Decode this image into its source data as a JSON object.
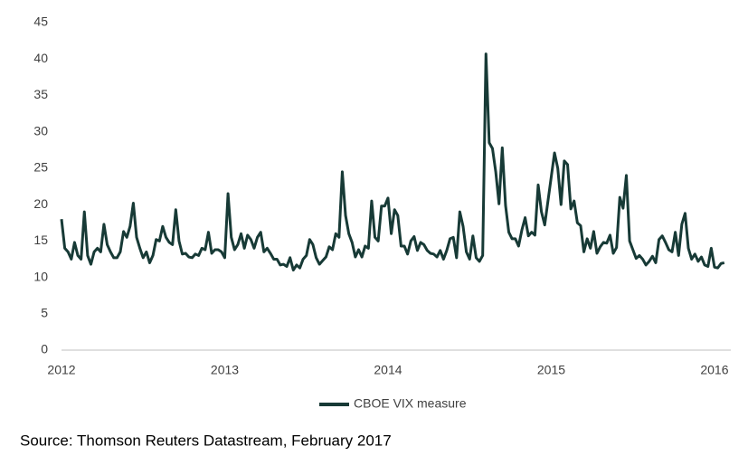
{
  "chart_data": {
    "type": "line",
    "x": [
      2012,
      2012.02,
      2012.04,
      2012.06,
      2012.08,
      2012.1,
      2012.12,
      2012.14,
      2012.16,
      2012.18,
      2012.2,
      2012.22,
      2012.24,
      2012.26,
      2012.28,
      2012.3,
      2012.32,
      2012.34,
      2012.36,
      2012.38,
      2012.4,
      2012.42,
      2012.44,
      2012.46,
      2012.48,
      2012.5,
      2012.52,
      2012.54,
      2012.56,
      2012.58,
      2012.6,
      2012.62,
      2012.64,
      2012.66,
      2012.68,
      2012.7,
      2012.72,
      2012.74,
      2012.76,
      2012.78,
      2012.8,
      2012.82,
      2012.84,
      2012.86,
      2012.88,
      2012.9,
      2012.92,
      2012.94,
      2012.96,
      2012.98,
      2013,
      2013.02,
      2013.04,
      2013.06,
      2013.08,
      2013.1,
      2013.12,
      2013.14,
      2013.16,
      2013.18,
      2013.2,
      2013.22,
      2013.24,
      2013.26,
      2013.28,
      2013.3,
      2013.32,
      2013.34,
      2013.36,
      2013.38,
      2013.4,
      2013.42,
      2013.44,
      2013.46,
      2013.48,
      2013.5,
      2013.52,
      2013.54,
      2013.56,
      2013.58,
      2013.6,
      2013.62,
      2013.64,
      2013.66,
      2013.68,
      2013.7,
      2013.72,
      2013.74,
      2013.76,
      2013.78,
      2013.8,
      2013.82,
      2013.84,
      2013.86,
      2013.88,
      2013.9,
      2013.92,
      2013.94,
      2013.96,
      2013.98,
      2014,
      2014.02,
      2014.04,
      2014.06,
      2014.08,
      2014.1,
      2014.12,
      2014.14,
      2014.16,
      2014.18,
      2014.2,
      2014.22,
      2014.24,
      2014.26,
      2014.28,
      2014.3,
      2014.32,
      2014.34,
      2014.36,
      2014.38,
      2014.4,
      2014.42,
      2014.44,
      2014.46,
      2014.48,
      2014.5,
      2014.52,
      2014.54,
      2014.56,
      2014.58,
      2014.6,
      2014.62,
      2014.64,
      2014.66,
      2014.68,
      2014.7,
      2014.72,
      2014.74,
      2014.76,
      2014.78,
      2014.8,
      2014.82,
      2014.84,
      2014.86,
      2014.88,
      2014.9,
      2014.92,
      2014.94,
      2014.96,
      2014.98,
      2015,
      2015.02,
      2015.04,
      2015.06,
      2015.08,
      2015.1,
      2015.12,
      2015.14,
      2015.16,
      2015.18,
      2015.2,
      2015.22,
      2015.24,
      2015.26,
      2015.28,
      2015.3,
      2015.32,
      2015.34,
      2015.36,
      2015.38,
      2015.4,
      2015.42,
      2015.44,
      2015.46,
      2015.48,
      2015.5,
      2015.52,
      2015.54,
      2015.56,
      2015.58,
      2015.6,
      2015.62,
      2015.64,
      2015.66,
      2015.68,
      2015.7,
      2015.72,
      2015.74,
      2015.76,
      2015.78,
      2015.8,
      2015.82,
      2015.84,
      2015.86,
      2015.88,
      2015.9,
      2015.92,
      2015.94,
      2015.96,
      2015.98,
      2016,
      2016.02,
      2016.04,
      2016.06
    ],
    "series": [
      {
        "name": "CBOE VIX measure",
        "color": "#173a36",
        "values": [
          18,
          14,
          13.5,
          12.5,
          14.8,
          13,
          12.5,
          19,
          13,
          11.8,
          13.5,
          14,
          13.5,
          17.3,
          14.5,
          13.5,
          12.7,
          12.7,
          13.5,
          16.3,
          15.5,
          17,
          20.2,
          15.5,
          14,
          12.7,
          13.5,
          12,
          13,
          15.2,
          15,
          17,
          15.5,
          14.8,
          14.5,
          19.3,
          15,
          13.2,
          13.3,
          12.8,
          12.7,
          13.2,
          13,
          14,
          13.8,
          16.2,
          13.3,
          13.8,
          13.8,
          13.5,
          12.7,
          21.5,
          15.5,
          13.8,
          14.5,
          16,
          14,
          15.8,
          15.2,
          14,
          15.5,
          16.2,
          13.5,
          14,
          13.3,
          12.5,
          12.5,
          11.7,
          11.8,
          11.5,
          12.7,
          11,
          11.7,
          11.3,
          12.5,
          13,
          15.2,
          14.5,
          12.7,
          11.8,
          12.3,
          12.8,
          14.2,
          13.8,
          16,
          15.5,
          24.5,
          18.5,
          16,
          14.8,
          12.8,
          13.8,
          12.8,
          14.3,
          14,
          20.5,
          15.5,
          15,
          19.8,
          19.8,
          20.9,
          16,
          19.3,
          18.5,
          14.3,
          14.3,
          13.2,
          15,
          15.6,
          13.7,
          14.8,
          14.5,
          13.7,
          13.3,
          13.2,
          12.8,
          13.7,
          12.5,
          13.7,
          15.3,
          15.5,
          12.7,
          19,
          17,
          13.5,
          12.5,
          15.7,
          12.7,
          12.2,
          13,
          40.7,
          28.5,
          27.7,
          24.5,
          20.1,
          27.8,
          19.9,
          16.2,
          15.3,
          15.3,
          14.3,
          16.5,
          18.2,
          15.7,
          16.2,
          15.8,
          22.7,
          19,
          17.2,
          20.5,
          23.8,
          27.1,
          25,
          20,
          26,
          25.5,
          19.4,
          20.5,
          17.5,
          17.1,
          13.5,
          15.3,
          14,
          16.3,
          13.3,
          14.2,
          14.8,
          14.7,
          15.8,
          13.3,
          14.1,
          21,
          19.5,
          24,
          15,
          13.8,
          12.6,
          13,
          12.5,
          11.7,
          12.2,
          12.9,
          12,
          15.2,
          15.7,
          14.8,
          13.8,
          13.5,
          16.2,
          13,
          17.3,
          18.8,
          14,
          12.5,
          13.2,
          12.2,
          12.8,
          11.7,
          11.5,
          14,
          11.4,
          11.3,
          11.9,
          12
        ]
      }
    ],
    "xlim": [
      2012,
      2016.1
    ],
    "xticks": [
      2012,
      2013,
      2014,
      2015,
      2016
    ],
    "ylim": [
      0,
      45
    ],
    "yticks": [
      0,
      5,
      10,
      15,
      20,
      25,
      30,
      35,
      40,
      45
    ],
    "grid": false,
    "legend": "bottom",
    "source": "Source: Thomson Reuters Datastream, February 2017"
  }
}
